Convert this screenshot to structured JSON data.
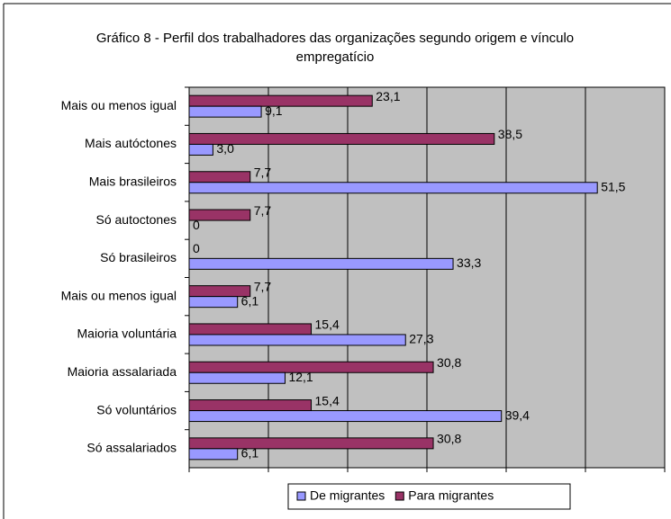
{
  "chart_data": {
    "type": "barh",
    "title": "Gráfico 8 - Perfil dos trabalhadores das organizações segundo origem e vínculo empregatício",
    "categories": [
      "Mais ou menos igual",
      "Mais autóctones",
      "Mais brasileiros",
      "Só autoctones",
      "Só brasileiros",
      "Mais ou menos igual",
      "Maioria voluntária",
      "Maioria assalariada",
      "Só voluntários",
      "Só assalariados"
    ],
    "series": [
      {
        "name": "De migrantes",
        "color": "#9999ff",
        "values": [
          9.1,
          3.0,
          51.5,
          0,
          33.3,
          6.1,
          27.3,
          12.1,
          39.4,
          6.1
        ],
        "value_labels": [
          "9,1",
          "3,0",
          "51,5",
          "0",
          "33,3",
          "6,1",
          "27,3",
          "12,1",
          "39,4",
          "6,1"
        ]
      },
      {
        "name": "Para migrantes",
        "color": "#993366",
        "values": [
          23.1,
          38.5,
          7.7,
          7.7,
          0,
          7.7,
          15.4,
          30.8,
          15.4,
          30.8
        ],
        "value_labels": [
          "23,1",
          "38,5",
          "7,7",
          "7,7",
          "0",
          "7,7",
          "15,4",
          "30,8",
          "15,4",
          "30,8"
        ]
      }
    ],
    "xlim": [
      0,
      60
    ],
    "xticks": [
      0,
      10,
      20,
      30,
      40,
      50,
      60
    ],
    "grid": true,
    "legend": "bottom"
  }
}
